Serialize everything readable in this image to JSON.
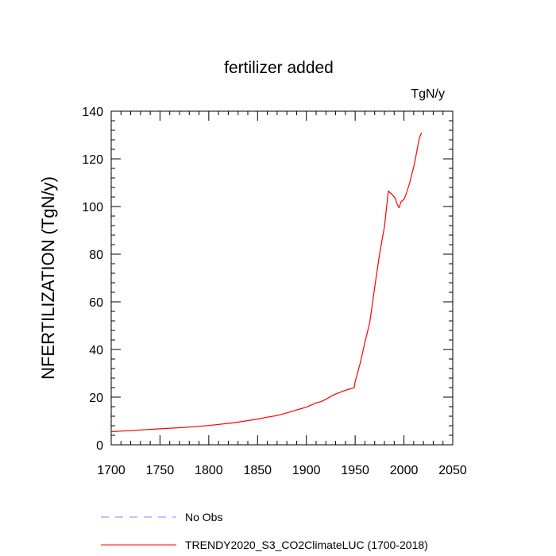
{
  "chart_data": {
    "type": "line",
    "title": "fertilizer added",
    "units_label": "TgN/y",
    "ylabel": "NFERTILIZATION  (TgN/y)",
    "xlabel": "",
    "xlim": [
      1700,
      2050
    ],
    "ylim": [
      0,
      140
    ],
    "x_ticks": [
      1700,
      1750,
      1800,
      1850,
      1900,
      1950,
      2000,
      2050
    ],
    "y_ticks": [
      0,
      20,
      40,
      60,
      80,
      100,
      120,
      140
    ],
    "grid": false,
    "legend_position": "bottom",
    "series": [
      {
        "name": "No Obs",
        "color": "#8080ff",
        "dashed": true,
        "points": []
      },
      {
        "name": "TRENDY2020_S3_CO2ClimateLUC (1700-2018)",
        "color": "#ff0000",
        "dashed": false,
        "points": [
          [
            1700,
            5.5
          ],
          [
            1725,
            6.1
          ],
          [
            1750,
            6.7
          ],
          [
            1775,
            7.3
          ],
          [
            1800,
            8.1
          ],
          [
            1825,
            9.2
          ],
          [
            1850,
            10.8
          ],
          [
            1860,
            11.6
          ],
          [
            1870,
            12.3
          ],
          [
            1880,
            13.4
          ],
          [
            1890,
            14.6
          ],
          [
            1900,
            15.8
          ],
          [
            1905,
            16.7
          ],
          [
            1910,
            17.6
          ],
          [
            1915,
            18.1
          ],
          [
            1920,
            19.1
          ],
          [
            1925,
            20.3
          ],
          [
            1930,
            21.3
          ],
          [
            1935,
            22.1
          ],
          [
            1940,
            22.9
          ],
          [
            1945,
            23.5
          ],
          [
            1949,
            23.9
          ],
          [
            1950,
            26.5
          ],
          [
            1955,
            34.0
          ],
          [
            1960,
            43.0
          ],
          [
            1965,
            51.5
          ],
          [
            1970,
            66.0
          ],
          [
            1975,
            80.0
          ],
          [
            1980,
            91.5
          ],
          [
            1984,
            106.5
          ],
          [
            1988,
            105.0
          ],
          [
            1991,
            103.5
          ],
          [
            1993,
            101.0
          ],
          [
            1995,
            99.5
          ],
          [
            1997,
            102.0
          ],
          [
            2000,
            103.0
          ],
          [
            2002,
            105.0
          ],
          [
            2004,
            107.5
          ],
          [
            2006,
            110.0
          ],
          [
            2008,
            113.5
          ],
          [
            2010,
            116.5
          ],
          [
            2012,
            120.5
          ],
          [
            2014,
            125.0
          ],
          [
            2016,
            129.0
          ],
          [
            2018,
            131.0
          ]
        ]
      }
    ]
  }
}
